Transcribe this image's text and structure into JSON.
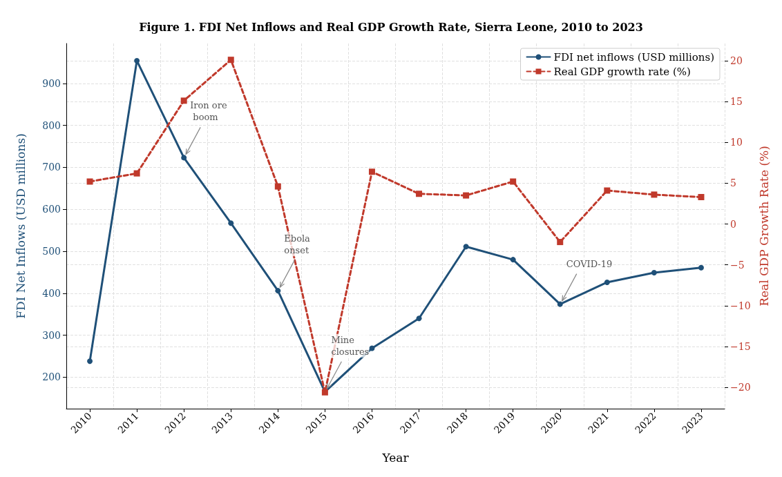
{
  "chart_data": {
    "type": "line",
    "title": "Figure 1. FDI Net Inflows and Real GDP Growth Rate, Sierra Leone, 2010 to 2023",
    "xlabel": "Year",
    "ylabel": "FDI Net Inflows (USD millions)",
    "y2label": "Real GDP Growth Rate (%)",
    "categories": [
      "2010",
      "2011",
      "2012",
      "2013",
      "2014",
      "2015",
      "2016",
      "2017",
      "2018",
      "2019",
      "2020",
      "2021",
      "2022",
      "2023"
    ],
    "series": [
      {
        "name": "FDI net inflows (USD millions)",
        "color": "#1f5078",
        "marker": "circle",
        "line_style": "solid",
        "values": [
          238,
          954,
          723,
          567,
          406,
          165,
          269,
          340,
          511,
          480,
          374,
          426,
          449,
          461
        ]
      },
      {
        "name": "Real GDP growth rate (%)",
        "color": "#c0392b",
        "marker": "square",
        "line_style": "dashed",
        "axis": "y2",
        "values": [
          5.2,
          6.2,
          15.1,
          20.1,
          4.6,
          -20.6,
          6.4,
          3.7,
          3.5,
          5.2,
          -2.2,
          4.1,
          3.6,
          3.3
        ]
      }
    ],
    "ylim": [
      125,
      995
    ],
    "yticks": [
      200,
      300,
      400,
      500,
      600,
      700,
      800,
      900
    ],
    "y2lim": [
      -22.6,
      22.1
    ],
    "y2ticks": [
      -20,
      -15,
      -10,
      -5,
      0,
      5,
      10,
      15,
      20
    ],
    "grid": true,
    "legend": "top right",
    "annotations": [
      {
        "text": "Iron ore boom",
        "x": "2012",
        "y": 723
      },
      {
        "text": "Ebola onset",
        "x": "2014",
        "y": 406
      },
      {
        "text": "Mine closures",
        "x": "2015",
        "y": 165
      },
      {
        "text": "COVID-19",
        "x": "2020",
        "y": 374
      }
    ]
  }
}
